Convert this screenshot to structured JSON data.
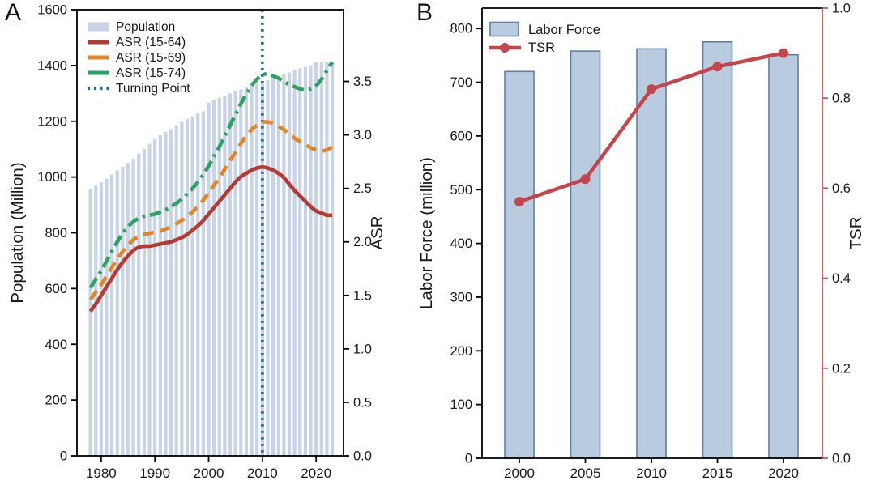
{
  "chart_data": [
    {
      "panel": "A",
      "type": "bar+line",
      "x_axis": {
        "ticks": [
          1980,
          1990,
          2000,
          2010,
          2020
        ],
        "lim": [
          1975.5,
          2025.1
        ]
      },
      "left_axis": {
        "label": "Population (Million)",
        "lim": [
          0,
          1600
        ],
        "tick_step": 200
      },
      "right_axis": {
        "label": "ASR",
        "lim": [
          0,
          4.17
        ],
        "ticks": [
          0,
          0.5,
          1.0,
          1.5,
          2.0,
          2.5,
          3.0,
          3.5
        ]
      },
      "years": [
        1978,
        1979,
        1980,
        1981,
        1982,
        1983,
        1984,
        1985,
        1986,
        1987,
        1988,
        1989,
        1990,
        1991,
        1992,
        1993,
        1994,
        1995,
        1996,
        1997,
        1998,
        1999,
        2000,
        2001,
        2002,
        2003,
        2004,
        2005,
        2006,
        2007,
        2008,
        2009,
        2010,
        2011,
        2012,
        2013,
        2014,
        2015,
        2016,
        2017,
        2018,
        2019,
        2020,
        2021,
        2022,
        2023
      ],
      "bars": {
        "name": "Population",
        "color": "#c7d4e6",
        "values": [
          956,
          969,
          981,
          994,
          1009,
          1023,
          1037,
          1051,
          1066,
          1084,
          1101,
          1119,
          1135,
          1150,
          1162,
          1172,
          1185,
          1198,
          1208,
          1218,
          1228,
          1236,
          1267,
          1276,
          1285,
          1292,
          1300,
          1308,
          1314,
          1321,
          1328,
          1335,
          1341,
          1347,
          1354,
          1361,
          1368,
          1375,
          1383,
          1390,
          1395,
          1400,
          1412,
          1413,
          1412,
          1410
        ]
      },
      "series": [
        {
          "name": "ASR (15-64)",
          "color": "#b23c35",
          "style": "solid",
          "values": [
            1.35,
            1.42,
            1.5,
            1.58,
            1.66,
            1.74,
            1.81,
            1.87,
            1.92,
            1.95,
            1.96,
            1.96,
            1.97,
            1.98,
            1.99,
            2.0,
            2.02,
            2.04,
            2.07,
            2.11,
            2.15,
            2.2,
            2.26,
            2.32,
            2.38,
            2.44,
            2.5,
            2.56,
            2.61,
            2.64,
            2.67,
            2.69,
            2.7,
            2.69,
            2.67,
            2.64,
            2.6,
            2.54,
            2.48,
            2.43,
            2.38,
            2.33,
            2.29,
            2.27,
            2.25,
            2.25
          ]
        },
        {
          "name": "ASR (15-69)",
          "color": "#e2862b",
          "style": "dashed",
          "values": [
            1.46,
            1.53,
            1.6,
            1.68,
            1.76,
            1.84,
            1.91,
            1.97,
            2.02,
            2.05,
            2.07,
            2.08,
            2.09,
            2.1,
            2.12,
            2.14,
            2.17,
            2.2,
            2.24,
            2.28,
            2.33,
            2.39,
            2.46,
            2.53,
            2.6,
            2.68,
            2.76,
            2.84,
            2.92,
            2.99,
            3.05,
            3.09,
            3.12,
            3.12,
            3.11,
            3.08,
            3.05,
            3.01,
            2.97,
            2.94,
            2.91,
            2.88,
            2.86,
            2.85,
            2.86,
            2.89
          ]
        },
        {
          "name": "ASR (15-74)",
          "color": "#2fa263",
          "style": "dashdot",
          "values": [
            1.57,
            1.65,
            1.73,
            1.82,
            1.91,
            2.0,
            2.08,
            2.14,
            2.19,
            2.22,
            2.24,
            2.25,
            2.26,
            2.28,
            2.3,
            2.33,
            2.36,
            2.4,
            2.45,
            2.5,
            2.56,
            2.63,
            2.71,
            2.8,
            2.89,
            2.99,
            3.09,
            3.19,
            3.29,
            3.38,
            3.46,
            3.52,
            3.56,
            3.57,
            3.55,
            3.53,
            3.5,
            3.47,
            3.45,
            3.43,
            3.42,
            3.43,
            3.46,
            3.52,
            3.6,
            3.68
          ]
        }
      ],
      "turning_point": {
        "name": "Turning Point",
        "year": 2010,
        "color": "#1e6cad",
        "style": "dotted"
      },
      "legend": [
        "Population",
        "ASR (15-64)",
        "ASR (15-69)",
        "ASR (15-74)",
        "Turning Point"
      ]
    },
    {
      "panel": "B",
      "type": "bar+line",
      "categories": [
        "2000",
        "2005",
        "2010",
        "2015",
        "2020"
      ],
      "left_axis": {
        "label": "Labor Force (million)",
        "lim": [
          0,
          838
        ],
        "tick_step": 100,
        "max_tick": 800
      },
      "right_axis": {
        "label": "TSR",
        "lim": [
          0,
          1.0
        ],
        "ticks": [
          0,
          0.2,
          0.4,
          0.6,
          0.8,
          1.0
        ],
        "color": "#c05058"
      },
      "bars": {
        "name": "Labor Force",
        "fill": "#b9cbdf",
        "edge": "#5c80a5",
        "values": [
          720,
          758,
          762,
          775,
          751
        ]
      },
      "line": {
        "name": "TSR",
        "color": "#c4454c",
        "values": [
          0.57,
          0.62,
          0.82,
          0.87,
          0.9
        ]
      },
      "legend": [
        "Labor Force",
        "TSR"
      ]
    }
  ]
}
